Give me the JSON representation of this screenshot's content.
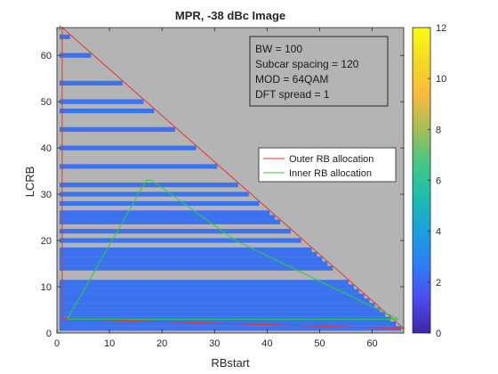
{
  "chart_data": {
    "type": "heatmap",
    "title": "MPR, -38 dBc Image",
    "xlabel": "RBstart",
    "ylabel": "LCRB",
    "xlim": [
      0,
      66
    ],
    "ylim": [
      0,
      66
    ],
    "xticks": [
      0,
      10,
      20,
      30,
      40,
      50,
      60
    ],
    "yticks": [
      0,
      10,
      20,
      30,
      40,
      50,
      60
    ],
    "colorbar": {
      "range": [
        0,
        12
      ],
      "ticks": [
        0,
        2,
        4,
        6,
        8,
        10,
        12
      ],
      "colormap": [
        "#3e26a8",
        "#4b4cf0",
        "#2f7cf7",
        "#1aa1dc",
        "#1cbcb0",
        "#43c785",
        "#a4be55",
        "#f7ba3d",
        "#f5d824",
        "#f9fb15"
      ]
    },
    "background_value_color": "#b4b4b4",
    "cell_value": 2,
    "cell_color": "#3a72f0",
    "allowed_full_rows_LCRB": [
      2,
      3,
      4,
      5,
      6,
      7,
      8,
      9,
      10,
      11,
      14,
      15,
      16,
      17,
      18,
      20,
      22,
      24,
      25,
      26,
      28,
      30,
      32,
      36,
      40,
      44,
      48,
      50,
      54,
      60,
      64,
      66
    ],
    "allowed_start_only_rows_LCRB": [
      1
    ],
    "series": [
      {
        "name": "Outer RB allocation",
        "color": "#e8352b",
        "x": [
          1,
          1,
          66,
          1
        ],
        "y": [
          3,
          66,
          1,
          3
        ]
      },
      {
        "name": "Inner RB allocation",
        "color": "#2ccf3a",
        "x": [
          2,
          17,
          18,
          34,
          65,
          2
        ],
        "y": [
          3,
          33,
          33,
          20,
          3,
          3
        ]
      }
    ],
    "annotation": [
      "BW = 100",
      "Subcar spacing  = 120",
      "MOD = 64QAM",
      "DFT spread = 1"
    ],
    "legend_position": "upper-right (inside plot)",
    "grid": false
  }
}
